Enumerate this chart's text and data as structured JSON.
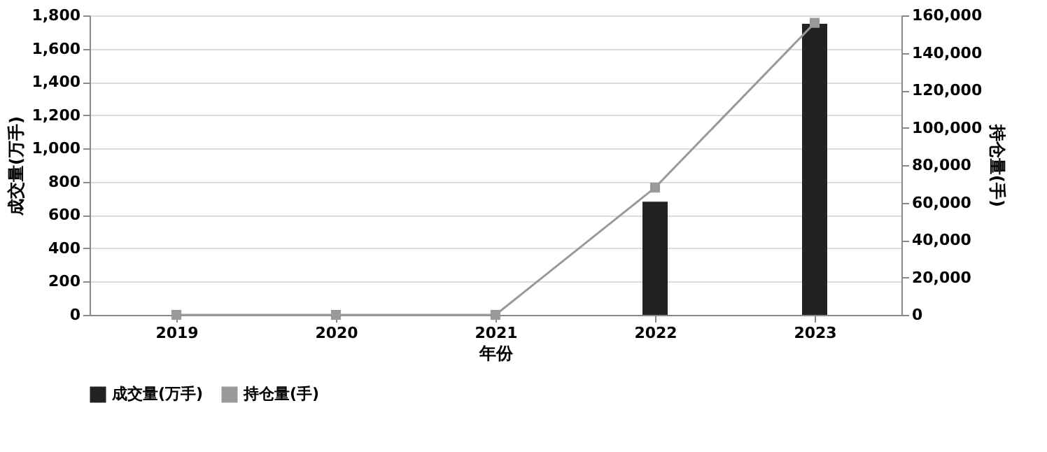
{
  "chart_data": {
    "type": "bar",
    "xlabel": "年份",
    "ylabel": "成交量(万手)",
    "y2label": "持仓量(手)",
    "categories": [
      "2019",
      "2020",
      "2021",
      "2022",
      "2023"
    ],
    "series": [
      {
        "name": "成交量(万手)",
        "color": "#222222",
        "values": [
          0,
          0,
          0,
          680,
          1750
        ]
      },
      {
        "name": "持仓量(手)",
        "color": "#999999",
        "type": "line",
        "axis": "y2",
        "marker": "square",
        "values": [
          0,
          0,
          0,
          68000,
          156000
        ]
      }
    ],
    "ylim": [
      0,
      1800
    ],
    "yticks": [
      0,
      200,
      400,
      600,
      800,
      {
        "value": 1000,
        "label": "1,000"
      },
      {
        "value": 1200,
        "label": "1,200"
      },
      {
        "value": 1400,
        "label": "1,400"
      },
      {
        "value": 1600,
        "label": "1,600"
      },
      {
        "value": 1800,
        "label": "1,800"
      }
    ],
    "y2lim": [
      0,
      160000
    ],
    "y2ticks": [
      0,
      {
        "value": 20000,
        "label": "20,000"
      },
      {
        "value": 40000,
        "label": "40,000"
      },
      {
        "value": 60000,
        "label": "60,000"
      },
      {
        "value": 80000,
        "label": "80,000"
      },
      {
        "value": 100000,
        "label": "100,000"
      },
      {
        "value": 120000,
        "label": "120,000"
      },
      {
        "value": 140000,
        "label": "140,000"
      },
      {
        "value": 160000,
        "label": "160,000"
      }
    ],
    "grid": "y",
    "legend": "bottom"
  }
}
